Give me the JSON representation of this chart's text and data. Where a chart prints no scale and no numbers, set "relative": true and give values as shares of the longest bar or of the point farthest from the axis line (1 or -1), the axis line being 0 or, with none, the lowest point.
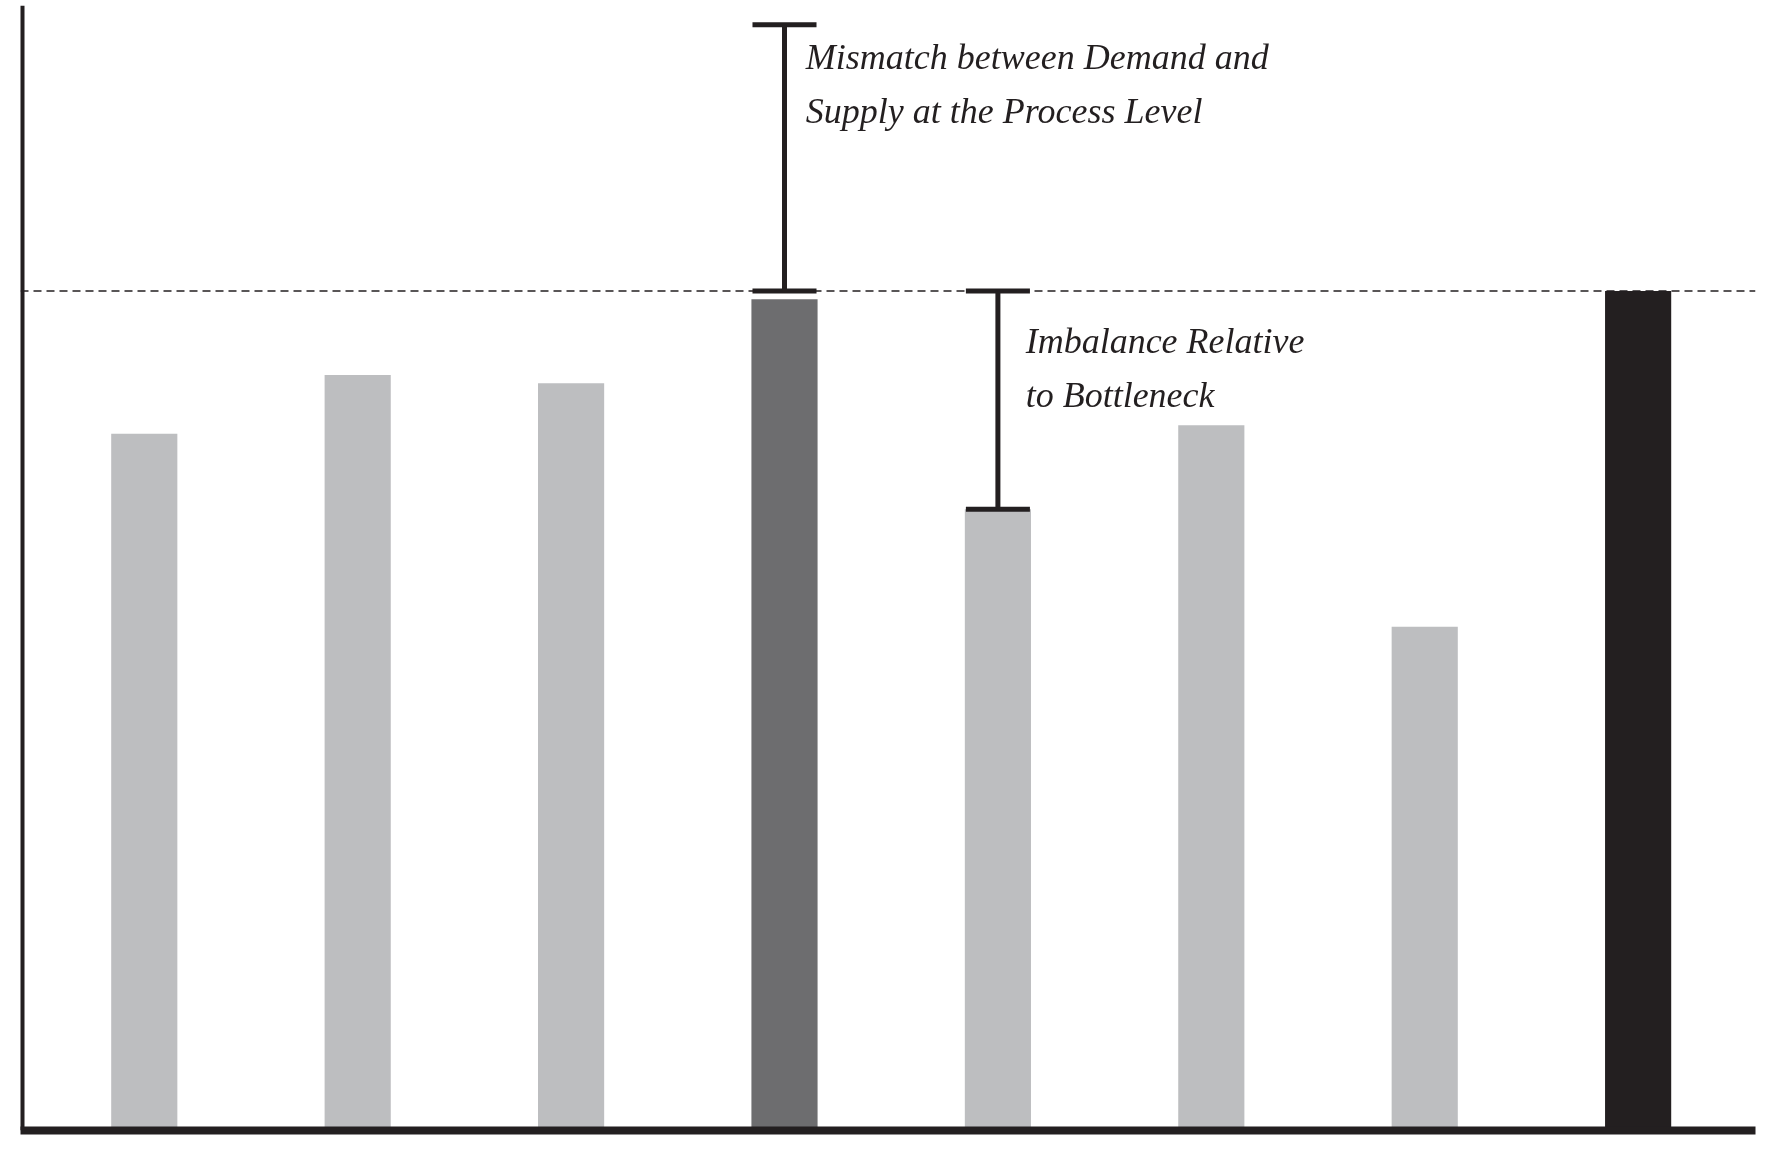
{
  "chart_data": {
    "type": "bar",
    "relative": true,
    "categories": [
      null,
      null,
      null,
      null,
      null,
      null,
      null,
      null
    ],
    "values": [
      0.83,
      0.9,
      0.89,
      0.99,
      0.74,
      0.84,
      0.6,
      1
    ],
    "colors": [
      "#bdbec0",
      "#bdbec0",
      "#bdbec0",
      "#6d6d6f",
      "#bdbec0",
      "#bdbec0",
      "#bdbec0",
      "#231f20"
    ],
    "ref_lines": [
      {
        "axis": "y",
        "value": 1,
        "line_style": "dashed",
        "color": "#231f20"
      }
    ],
    "annotations": [
      "Mismatch between Demand and\nSupply at the Process Level",
      "Imbalance Relative\nto Bottleneck"
    ],
    "grid": false
  }
}
